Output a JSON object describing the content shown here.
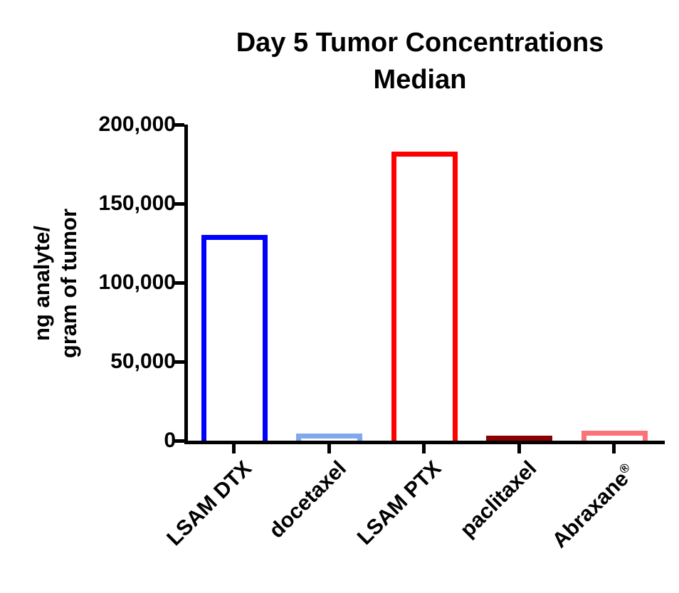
{
  "page": {
    "background": "#FFFFFF"
  },
  "chart_data": {
    "type": "bar",
    "title": "Day 5 Tumor Concentrations",
    "subtitle": "Median",
    "ylabel_lines": [
      "ng analyte/",
      "gram of tumor"
    ],
    "xlabel": "",
    "ylim": [
      0,
      200000
    ],
    "grid": false,
    "legend": "none",
    "categories": [
      "LSAM DTX",
      "docetaxel",
      "LSAM PTX",
      "paclitaxel",
      "Abraxane®"
    ],
    "values": [
      130000,
      4500,
      183000,
      2700,
      6300
    ],
    "bar_style": "outlined",
    "bar_fill_color": "#FFFFFF",
    "bar_border_colors": [
      "#0000FF",
      "#7FA8EF",
      "#FF0000",
      "#8B0000",
      "#FA7378"
    ],
    "yticks": [
      {
        "value": 200000,
        "label": "200,000"
      },
      {
        "value": 150000,
        "label": "150,000"
      },
      {
        "value": 100000,
        "label": "100,000"
      },
      {
        "value": 50000,
        "label": "50,000"
      },
      {
        "value": 0,
        "label": "0"
      }
    ],
    "axis_color": "#000000"
  }
}
